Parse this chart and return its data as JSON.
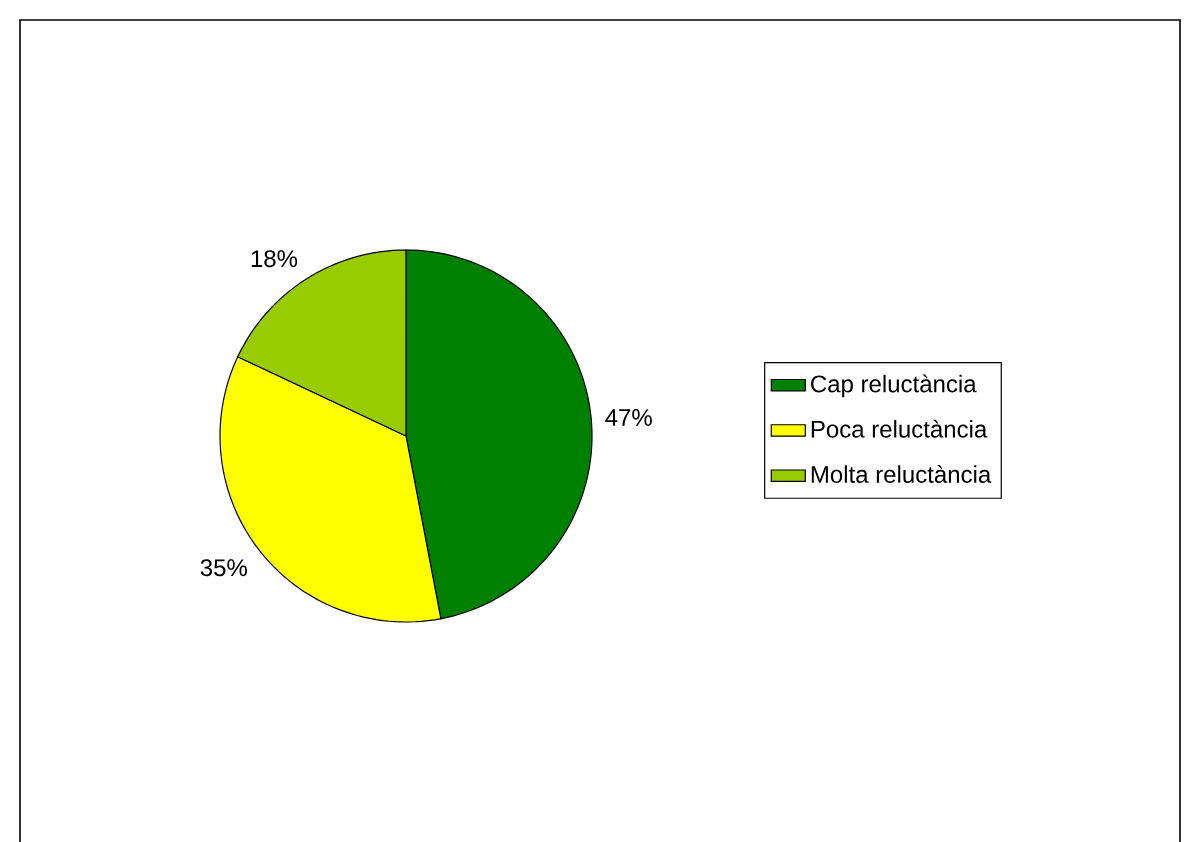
{
  "chart_data": {
    "type": "pie",
    "categories": [
      "Cap reluctància",
      "Poca reluctància",
      "Molta reluctància"
    ],
    "values": [
      47,
      35,
      18
    ],
    "colors": [
      "#008000",
      "#ffff00",
      "#99cc00"
    ],
    "value_labels": [
      "47%",
      "35%",
      "18%"
    ],
    "legend": "right"
  }
}
